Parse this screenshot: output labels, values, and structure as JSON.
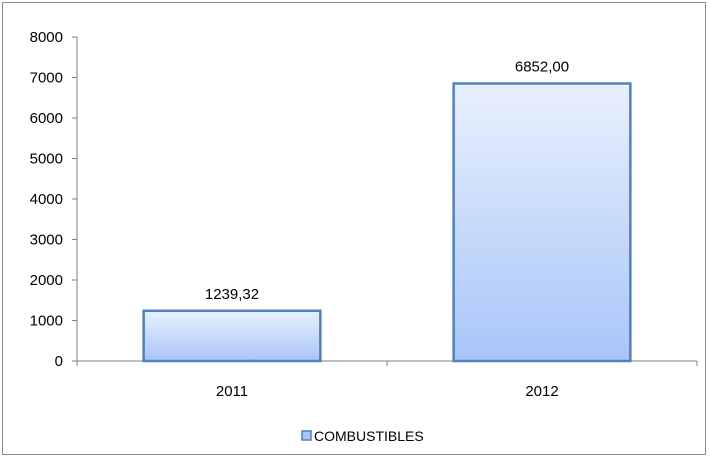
{
  "chart_data": {
    "type": "bar",
    "categories": [
      "2011",
      "2012"
    ],
    "series": [
      {
        "name": "COMBUSTIBLES",
        "values": [
          1239.32,
          6852.0
        ]
      }
    ],
    "data_labels": [
      "1239,32",
      "6852,00"
    ],
    "y_ticks": [
      "0",
      "1000",
      "2000",
      "3000",
      "4000",
      "5000",
      "6000",
      "7000",
      "8000"
    ],
    "ylim": [
      0,
      8000
    ],
    "grid": false,
    "legend_position": "bottom",
    "colors": {
      "bar_fill_top": "#e8f0fd",
      "bar_fill_bottom": "#a9c5f8",
      "bar_border": "#4f81bd",
      "legend_swatch": "#4f81bd",
      "axis": "#808080"
    }
  }
}
